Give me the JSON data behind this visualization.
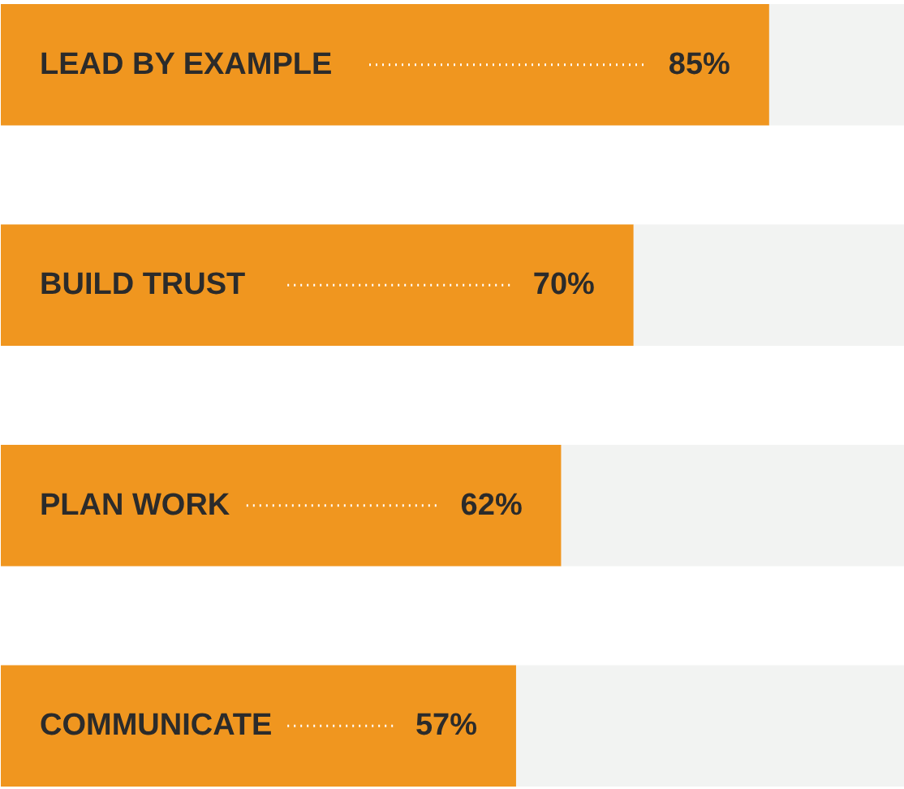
{
  "chart_data": {
    "type": "bar",
    "orientation": "horizontal",
    "stacked": true,
    "xlim": [
      0,
      100
    ],
    "categories": [
      "LEAD BY EXAMPLE",
      "BUILD TRUST",
      "PLAN WORK",
      "COMMUNICATE"
    ],
    "series": [
      {
        "color": "#f0961f",
        "values": [
          85,
          70,
          62,
          57
        ],
        "value_labels": [
          "85%",
          "70%",
          "62%",
          "57%"
        ]
      },
      {
        "color": "#f2f3f2",
        "values": [
          15,
          30,
          38,
          43
        ]
      }
    ],
    "tick_labels": false,
    "grid": false
  }
}
